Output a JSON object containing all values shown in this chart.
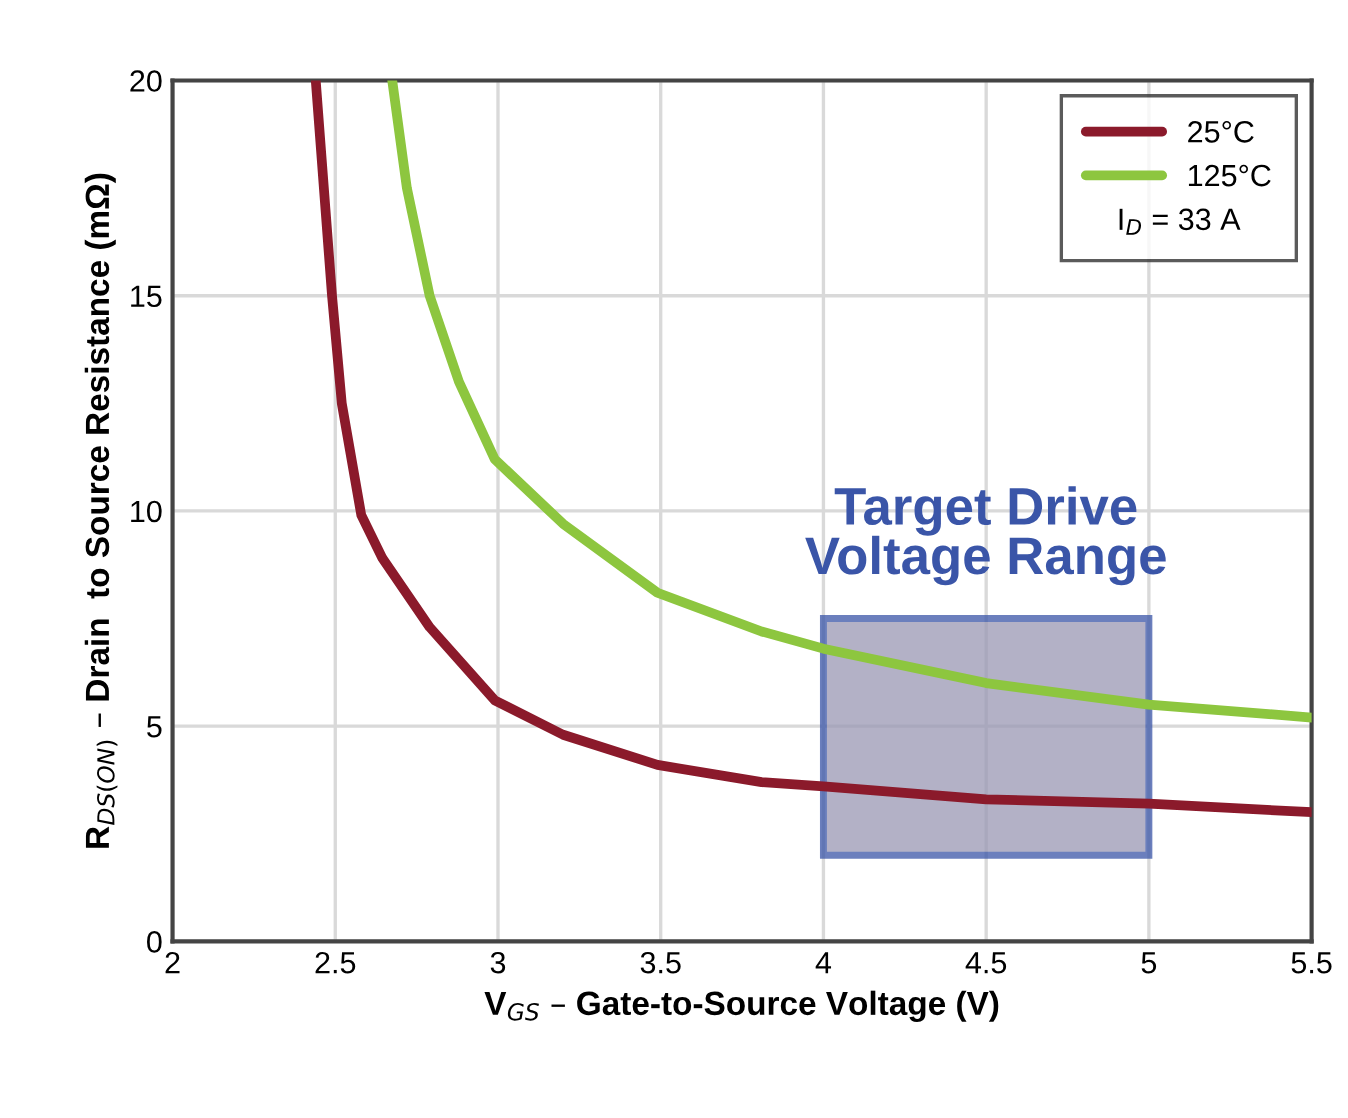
{
  "chart_data": {
    "type": "line",
    "xlabel": "V$_{GS}$ – Gate-to-Source Voltage (V)",
    "ylabel": "R$_{DS(ON)}$ – Drain  to Source Resistance (mΩ)",
    "xlim": [
      2,
      5.5
    ],
    "xticks": [
      2,
      2.5,
      3,
      3.5,
      4,
      4.5,
      5,
      5.5
    ],
    "ylim": [
      0,
      20
    ],
    "yticks": [
      0,
      5,
      10,
      15,
      20
    ],
    "grid": true,
    "legend": "top right",
    "legend_title": "I$_{D}$ = 33 A",
    "series": [
      {
        "name": "25°C",
        "color": "#8b1a2b",
        "x": [
          2.44,
          2.47,
          2.49,
          2.52,
          2.58,
          2.645,
          2.79,
          2.99,
          3.2,
          3.49,
          3.81,
          4.0,
          4.5,
          5.0,
          5.5
        ],
        "values": [
          20,
          17,
          15,
          12.5,
          9.9,
          8.9,
          7.3,
          5.6,
          4.8,
          4.1,
          3.7,
          3.6,
          3.3,
          3.2,
          3.0
        ]
      },
      {
        "name": "125°C",
        "color": "#8dc63f",
        "x": [
          2.675,
          2.72,
          2.79,
          2.88,
          2.99,
          3.2,
          3.49,
          3.81,
          4.0,
          4.5,
          5.0,
          5.5
        ],
        "values": [
          20,
          17.5,
          15,
          13,
          11.2,
          9.7,
          8.1,
          7.2,
          6.8,
          6.0,
          5.5,
          5.2
        ]
      },
      {
        "type": "bar",
        "color": "#9a98b4",
        "x": [
          4.5
        ],
        "values": [
          5.5
        ],
        "base": [
          2
        ]
      }
    ],
    "annotations": [
      {
        "text": "Target Drive\nVoltage Range",
        "x": 4.5,
        "y": 7.5
      }
    ]
  }
}
